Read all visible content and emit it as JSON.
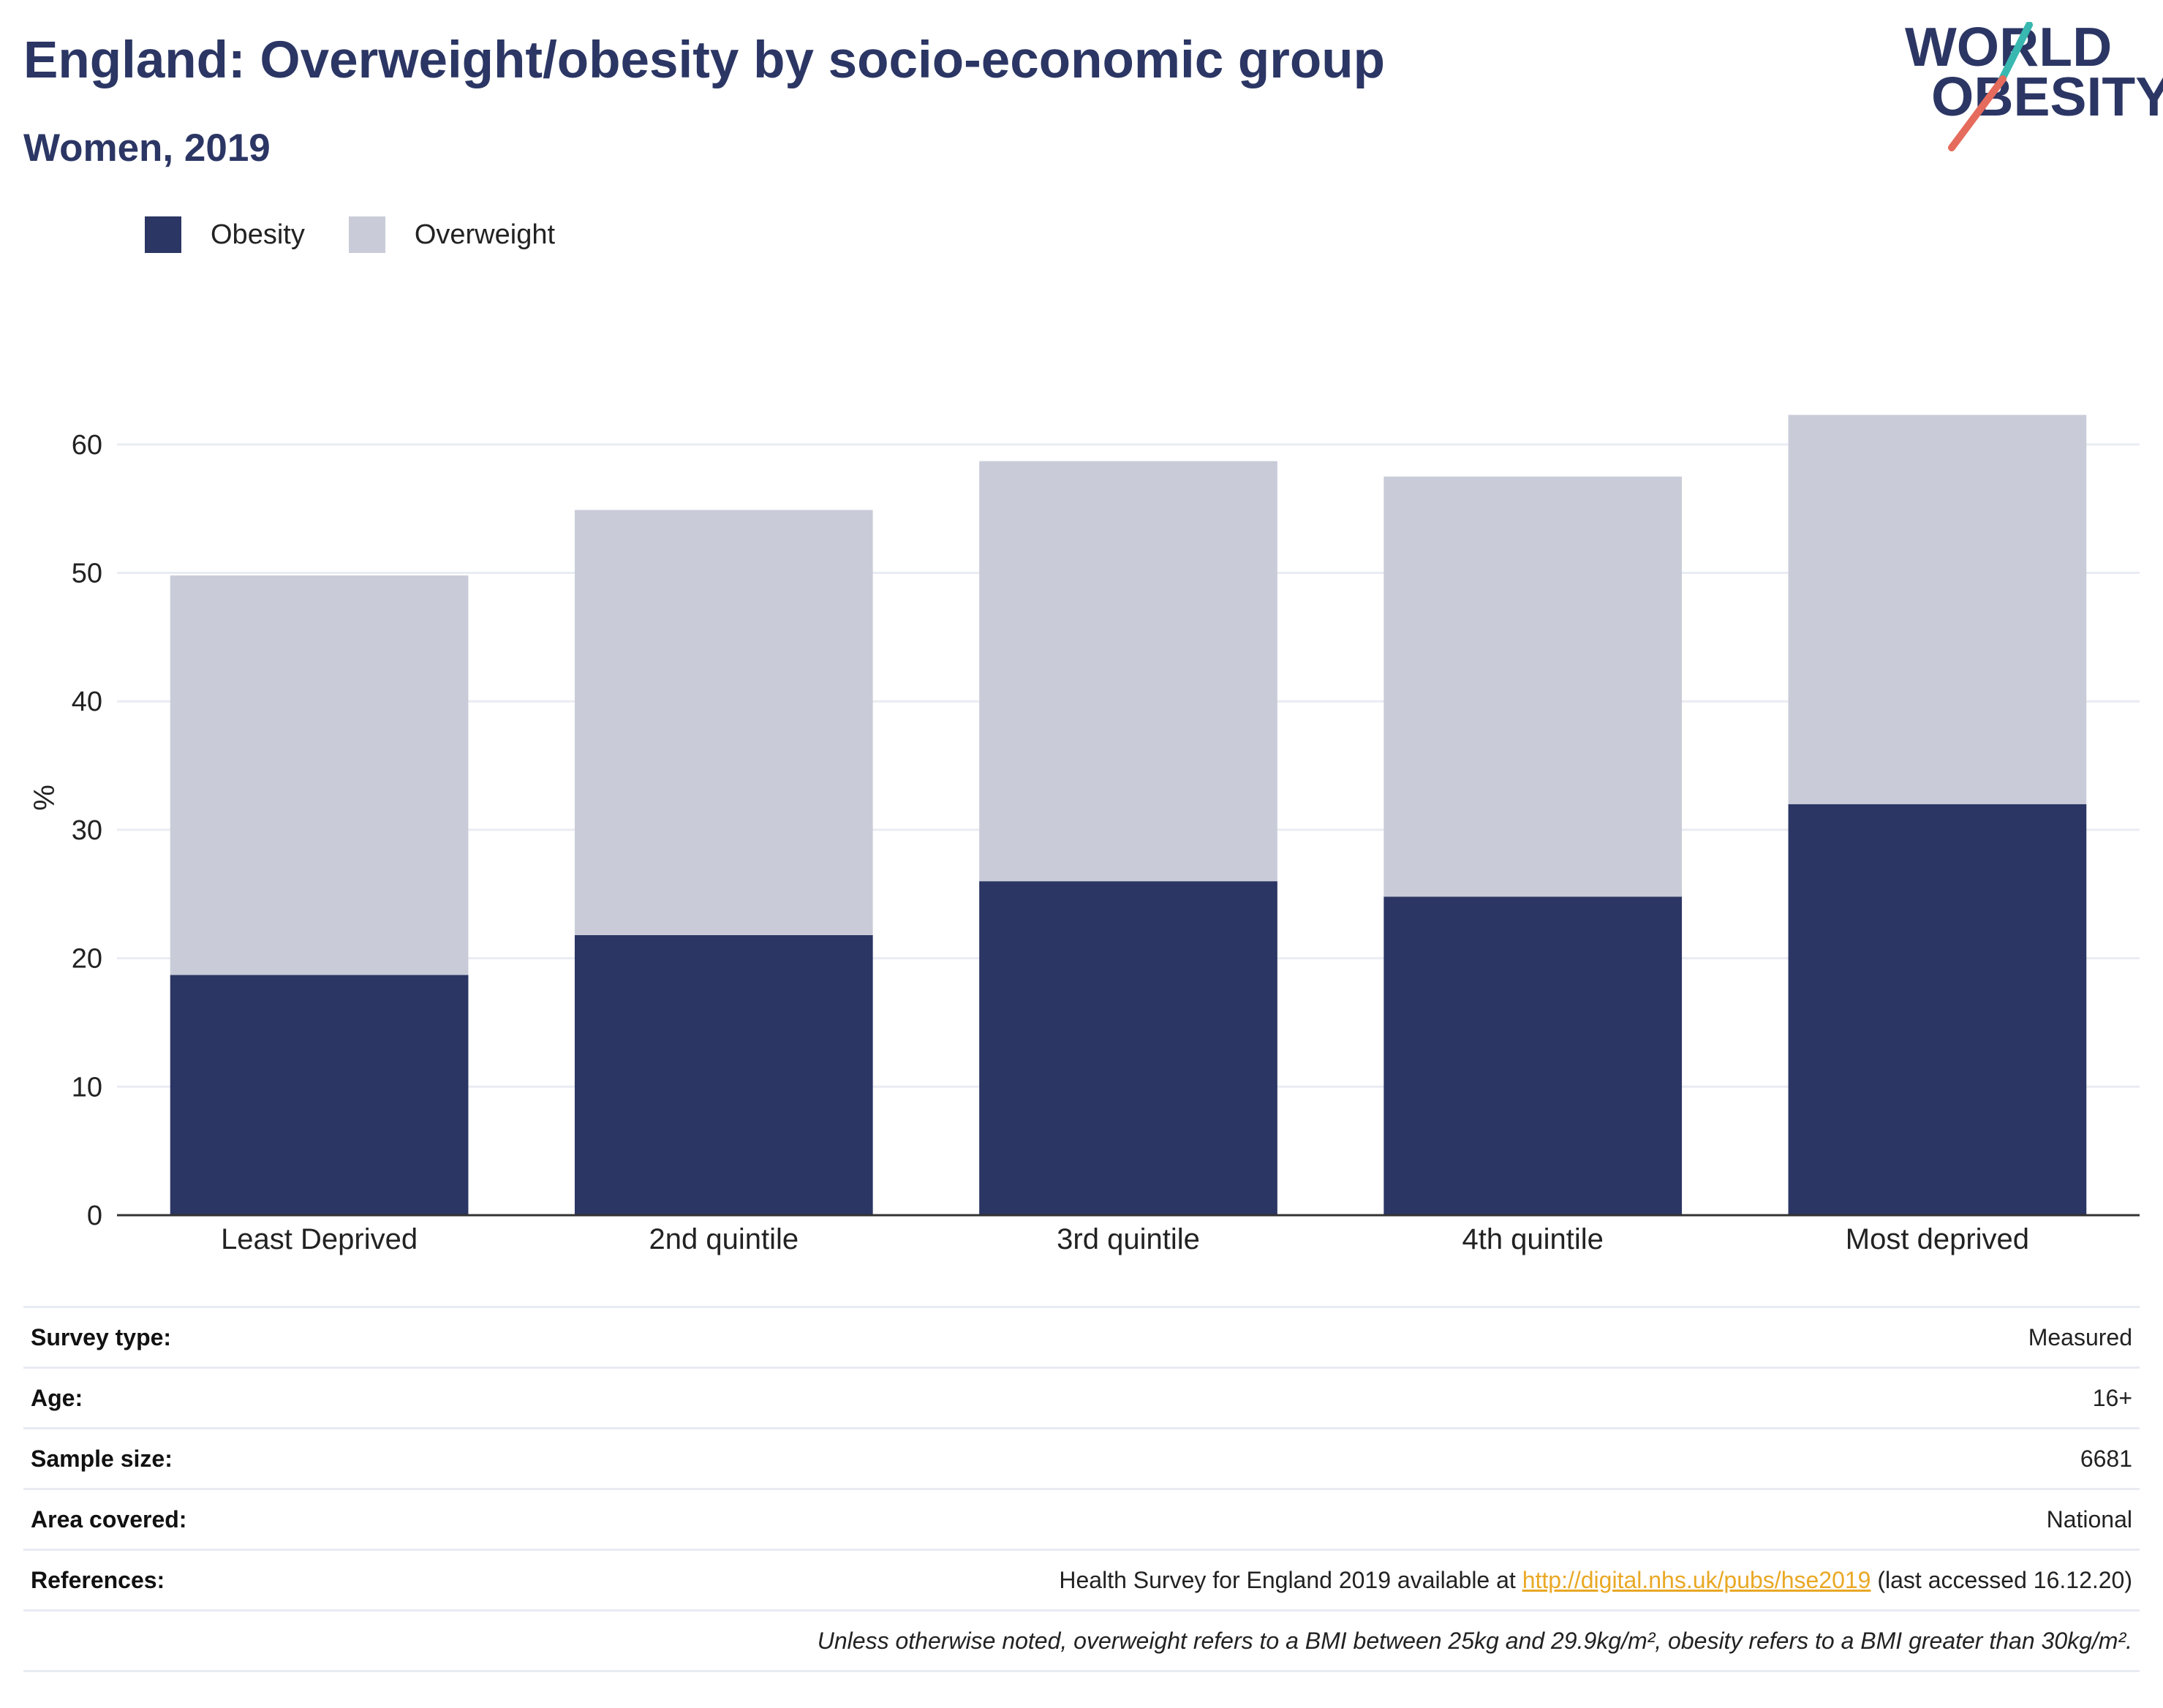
{
  "header": {
    "title": "England: Overweight/obesity by socio-economic group",
    "subtitle": "Women, 2019"
  },
  "logo": {
    "line1": "WORLD",
    "line2": "OBESITY",
    "colors": {
      "teal": "#38b8b0",
      "coral": "#e56b5c",
      "navy": "#2b3664"
    }
  },
  "colors": {
    "obesity": "#2b3664",
    "overweight": "#c9ccd8",
    "grid": "#e9ecf2",
    "axis": "#333333"
  },
  "legend": [
    {
      "label": "Obesity",
      "color": "#2b3664"
    },
    {
      "label": "Overweight",
      "color": "#c9ccd8"
    }
  ],
  "chart_data": {
    "type": "bar",
    "stacked": true,
    "categories": [
      "Least Deprived",
      "2nd quintile",
      "3rd quintile",
      "4th quintile",
      "Most deprived"
    ],
    "series": [
      {
        "name": "Obesity",
        "values": [
          18.7,
          21.8,
          26.0,
          24.8,
          32.0
        ]
      },
      {
        "name": "Overweight",
        "values": [
          31.1,
          33.1,
          32.7,
          32.7,
          30.3
        ]
      }
    ],
    "ylabel": "%",
    "ylim": [
      0,
      65
    ],
    "yticks": [
      0,
      10,
      20,
      30,
      40,
      50,
      60
    ],
    "grid": true,
    "legend_position": "top-left"
  },
  "meta": {
    "survey_type_label": "Survey type:",
    "survey_type": "Measured",
    "age_label": "Age:",
    "age": "16+",
    "sample_size_label": "Sample size:",
    "sample_size": "6681",
    "area_label": "Area covered:",
    "area": "National",
    "references_label": "References:",
    "references_prefix": "Health Survey for England 2019 available at ",
    "references_link": "http://digital.nhs.uk/pubs/hse2019",
    "references_suffix": " (last accessed 16.12.20)",
    "note": "Unless otherwise noted, overweight refers to a BMI between 25kg and 29.9kg/m², obesity refers to a BMI greater than 30kg/m²."
  }
}
